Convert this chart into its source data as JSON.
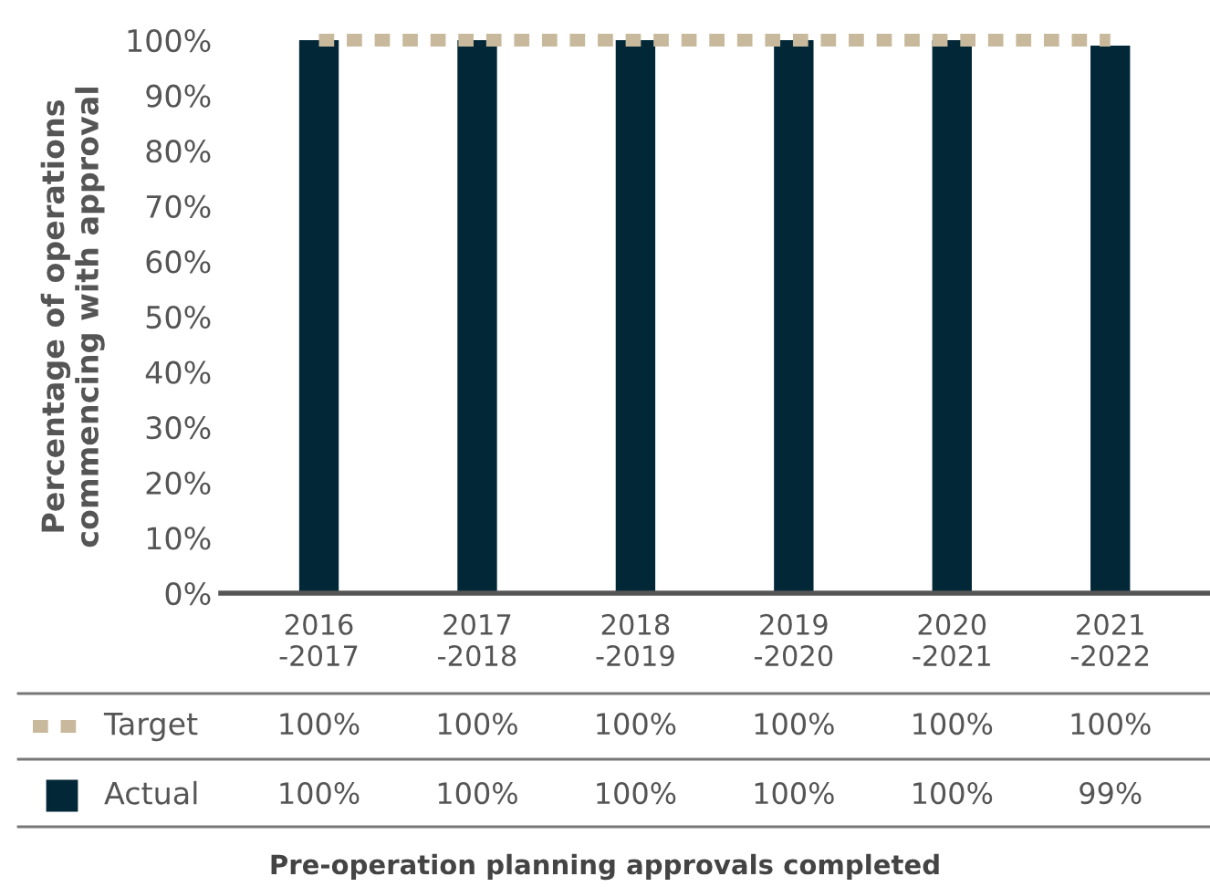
{
  "chart_data": {
    "type": "bar",
    "annotations": [
      "Pre-operation planning approvals completed"
    ],
    "ylabel": "Percentage of operations\ncommencing with approval",
    "categories": [
      "2016\n-2017",
      "2017\n-2018",
      "2018\n-2019",
      "2019\n-2020",
      "2020\n-2021",
      "2021\n-2022"
    ],
    "series": [
      {
        "name": "Target",
        "type": "line",
        "line_style": "dotted",
        "color": "#c8b99c",
        "values": [
          100,
          100,
          100,
          100,
          100,
          100
        ],
        "value_labels": [
          "100%",
          "100%",
          "100%",
          "100%",
          "100%",
          "100%"
        ]
      },
      {
        "name": "Actual",
        "color": "#022838",
        "values": [
          100,
          100,
          100,
          100,
          100,
          99
        ],
        "value_labels": [
          "100%",
          "100%",
          "100%",
          "100%",
          "100%",
          "99%"
        ]
      }
    ],
    "ylim": [
      0,
      100
    ],
    "yticks": [
      {
        "value": 0,
        "label": "0%"
      },
      {
        "value": 10,
        "label": "10%"
      },
      {
        "value": 20,
        "label": "20%"
      },
      {
        "value": 30,
        "label": "30%"
      },
      {
        "value": 40,
        "label": "40%"
      },
      {
        "value": 50,
        "label": "50%"
      },
      {
        "value": 60,
        "label": "60%"
      },
      {
        "value": 70,
        "label": "70%"
      },
      {
        "value": 80,
        "label": "80%"
      },
      {
        "value": 90,
        "label": "90%"
      },
      {
        "value": 100,
        "label": "100%"
      }
    ],
    "grid": false,
    "legend": "bottom"
  }
}
